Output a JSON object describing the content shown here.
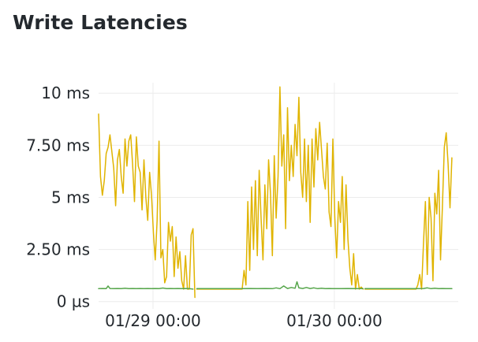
{
  "panel": {
    "title": "Write Latencies"
  },
  "chart_data": {
    "type": "line",
    "title": "Write Latencies",
    "xlabel": "",
    "ylabel": "",
    "x_unit": "hours since 01/28 16:48 (axis shows dates)",
    "xlim": [
      0,
      47.6
    ],
    "ylim": [
      -0.35,
      10.5
    ],
    "grid": true,
    "legend": "none",
    "y_ticks": [
      {
        "value": 10,
        "label": "10 ms"
      },
      {
        "value": 7.5,
        "label": "7.50 ms"
      },
      {
        "value": 5,
        "label": "5 ms"
      },
      {
        "value": 2.5,
        "label": "2.50 ms"
      },
      {
        "value": 0,
        "label": "0 µs"
      }
    ],
    "x_ticks": [
      {
        "value": 7.2,
        "label": "01/29 00:00"
      },
      {
        "value": 31.2,
        "label": "01/30 00:00"
      }
    ],
    "series": [
      {
        "color": "#e0b400",
        "points": [
          [
            0.0,
            9.0
          ],
          [
            0.25,
            6.0
          ],
          [
            0.5,
            5.1
          ],
          [
            0.75,
            5.8
          ],
          [
            1.0,
            7.1
          ],
          [
            1.25,
            7.4
          ],
          [
            1.5,
            8.0
          ],
          [
            1.75,
            7.2
          ],
          [
            2.0,
            6.4
          ],
          [
            2.25,
            4.6
          ],
          [
            2.5,
            6.8
          ],
          [
            2.75,
            7.3
          ],
          [
            3.0,
            6.0
          ],
          [
            3.25,
            5.2
          ],
          [
            3.5,
            7.8
          ],
          [
            3.75,
            6.5
          ],
          [
            4.0,
            7.7
          ],
          [
            4.25,
            8.0
          ],
          [
            4.5,
            6.6
          ],
          [
            4.75,
            4.8
          ],
          [
            5.0,
            7.9
          ],
          [
            5.25,
            6.5
          ],
          [
            5.5,
            6.2
          ],
          [
            5.75,
            4.4
          ],
          [
            6.0,
            6.8
          ],
          [
            6.25,
            5.0
          ],
          [
            6.5,
            3.9
          ],
          [
            6.75,
            6.2
          ],
          [
            7.0,
            5.1
          ],
          [
            7.25,
            3.3
          ],
          [
            7.5,
            2.0
          ],
          [
            7.75,
            3.9
          ],
          [
            8.0,
            7.7
          ],
          [
            8.25,
            2.1
          ],
          [
            8.5,
            2.5
          ],
          [
            8.75,
            0.9
          ],
          [
            9.0,
            1.2
          ],
          [
            9.25,
            3.8
          ],
          [
            9.5,
            2.9
          ],
          [
            9.75,
            3.6
          ],
          [
            10.0,
            1.2
          ],
          [
            10.25,
            3.1
          ],
          [
            10.5,
            1.6
          ],
          [
            10.75,
            2.4
          ],
          [
            11.0,
            1.0
          ],
          [
            11.25,
            0.6
          ],
          [
            11.5,
            2.2
          ],
          [
            11.75,
            0.6
          ],
          [
            12.0,
            0.6
          ],
          [
            12.25,
            3.2
          ],
          [
            12.5,
            3.5
          ],
          [
            12.75,
            0.2
          ],
          null,
          [
            13.0,
            0.6
          ],
          [
            13.5,
            0.6
          ],
          [
            14.0,
            0.6
          ],
          [
            14.5,
            0.6
          ],
          [
            15.0,
            0.6
          ],
          [
            15.5,
            0.6
          ],
          [
            16.0,
            0.6
          ],
          [
            16.5,
            0.6
          ],
          [
            17.0,
            0.6
          ],
          [
            17.5,
            0.6
          ],
          [
            18.0,
            0.6
          ],
          [
            18.5,
            0.6
          ],
          [
            19.0,
            0.6
          ],
          [
            19.25,
            1.5
          ],
          [
            19.5,
            0.8
          ],
          [
            19.75,
            4.8
          ],
          [
            20.0,
            1.5
          ],
          [
            20.25,
            5.5
          ],
          [
            20.5,
            2.5
          ],
          [
            20.75,
            5.8
          ],
          [
            21.0,
            2.2
          ],
          [
            21.25,
            6.3
          ],
          [
            21.5,
            4.0
          ],
          [
            21.75,
            2.0
          ],
          [
            22.0,
            5.6
          ],
          [
            22.25,
            3.5
          ],
          [
            22.5,
            6.8
          ],
          [
            22.75,
            5.2
          ],
          [
            23.0,
            2.2
          ],
          [
            23.25,
            7.0
          ],
          [
            23.5,
            4.0
          ],
          [
            23.75,
            6.0
          ],
          [
            24.0,
            10.3
          ],
          [
            24.25,
            6.5
          ],
          [
            24.5,
            8.0
          ],
          [
            24.75,
            3.5
          ],
          [
            25.0,
            9.3
          ],
          [
            25.25,
            5.8
          ],
          [
            25.5,
            7.5
          ],
          [
            25.75,
            6.0
          ],
          [
            26.0,
            8.5
          ],
          [
            26.25,
            7.0
          ],
          [
            26.5,
            9.8
          ],
          [
            26.75,
            6.2
          ],
          [
            27.0,
            5.0
          ],
          [
            27.25,
            7.8
          ],
          [
            27.5,
            4.8
          ],
          [
            27.75,
            7.5
          ],
          [
            28.0,
            3.8
          ],
          [
            28.25,
            7.8
          ],
          [
            28.5,
            5.5
          ],
          [
            28.75,
            8.3
          ],
          [
            29.0,
            6.8
          ],
          [
            29.25,
            8.6
          ],
          [
            29.5,
            7.3
          ],
          [
            29.75,
            6.0
          ],
          [
            30.0,
            5.4
          ],
          [
            30.25,
            7.6
          ],
          [
            30.5,
            4.3
          ],
          [
            30.75,
            3.6
          ],
          [
            31.0,
            7.8
          ],
          [
            31.25,
            4.1
          ],
          [
            31.5,
            2.1
          ],
          [
            31.75,
            4.8
          ],
          [
            32.0,
            3.8
          ],
          [
            32.25,
            6.0
          ],
          [
            32.5,
            2.5
          ],
          [
            32.75,
            5.6
          ],
          [
            33.0,
            3.0
          ],
          [
            33.25,
            1.6
          ],
          [
            33.5,
            0.8
          ],
          [
            33.75,
            2.3
          ],
          [
            34.0,
            0.6
          ],
          [
            34.25,
            1.3
          ],
          [
            34.5,
            0.6
          ],
          [
            34.75,
            0.7
          ],
          [
            35.0,
            0.6
          ],
          null,
          [
            35.25,
            0.6
          ],
          [
            36.0,
            0.6
          ],
          [
            36.5,
            0.6
          ],
          [
            37.0,
            0.6
          ],
          [
            37.5,
            0.6
          ],
          [
            38.0,
            0.6
          ],
          [
            38.5,
            0.6
          ],
          [
            39.0,
            0.6
          ],
          [
            39.5,
            0.6
          ],
          [
            40.0,
            0.6
          ],
          [
            40.5,
            0.6
          ],
          [
            41.0,
            0.6
          ],
          [
            41.5,
            0.6
          ],
          [
            42.0,
            0.6
          ],
          [
            42.25,
            0.8
          ],
          [
            42.5,
            1.3
          ],
          [
            42.75,
            0.6
          ],
          [
            43.0,
            2.8
          ],
          [
            43.25,
            4.8
          ],
          [
            43.5,
            1.3
          ],
          [
            43.75,
            5.0
          ],
          [
            44.0,
            4.0
          ],
          [
            44.25,
            1.0
          ],
          [
            44.5,
            5.2
          ],
          [
            44.75,
            4.2
          ],
          [
            45.0,
            6.3
          ],
          [
            45.25,
            2.0
          ],
          [
            45.5,
            4.6
          ],
          [
            45.75,
            7.4
          ],
          [
            46.0,
            8.1
          ],
          [
            46.25,
            6.6
          ],
          [
            46.5,
            4.5
          ],
          [
            46.75,
            6.9
          ]
        ]
      },
      {
        "color": "#56a64b",
        "points": [
          [
            0.0,
            0.62
          ],
          [
            0.5,
            0.63
          ],
          [
            1.0,
            0.62
          ],
          [
            1.25,
            0.75
          ],
          [
            1.5,
            0.63
          ],
          [
            2.0,
            0.62
          ],
          [
            2.5,
            0.63
          ],
          [
            3.0,
            0.62
          ],
          [
            3.5,
            0.64
          ],
          [
            4.0,
            0.62
          ],
          [
            4.5,
            0.63
          ],
          [
            5.0,
            0.62
          ],
          [
            5.5,
            0.63
          ],
          [
            6.0,
            0.62
          ],
          [
            6.5,
            0.63
          ],
          [
            7.0,
            0.62
          ],
          [
            7.5,
            0.63
          ],
          [
            8.0,
            0.62
          ],
          [
            8.5,
            0.65
          ],
          [
            9.0,
            0.62
          ],
          [
            9.5,
            0.63
          ],
          [
            10.0,
            0.62
          ],
          [
            10.5,
            0.63
          ],
          [
            11.0,
            0.62
          ],
          [
            11.5,
            0.63
          ],
          [
            12.0,
            0.62
          ],
          [
            12.5,
            0.6
          ],
          null,
          [
            13.0,
            0.62
          ],
          [
            14.0,
            0.62
          ],
          [
            15.0,
            0.62
          ],
          [
            16.0,
            0.62
          ],
          [
            17.0,
            0.62
          ],
          [
            18.0,
            0.62
          ],
          [
            19.0,
            0.62
          ],
          [
            20.0,
            0.63
          ],
          [
            21.0,
            0.62
          ],
          [
            22.0,
            0.63
          ],
          [
            23.0,
            0.62
          ],
          [
            23.5,
            0.66
          ],
          [
            24.0,
            0.62
          ],
          [
            24.5,
            0.75
          ],
          [
            25.0,
            0.63
          ],
          [
            25.5,
            0.68
          ],
          [
            26.0,
            0.64
          ],
          [
            26.25,
            0.95
          ],
          [
            26.5,
            0.66
          ],
          [
            27.0,
            0.63
          ],
          [
            27.5,
            0.68
          ],
          [
            28.0,
            0.63
          ],
          [
            28.5,
            0.66
          ],
          [
            29.0,
            0.62
          ],
          [
            29.5,
            0.64
          ],
          [
            30.0,
            0.62
          ],
          [
            30.5,
            0.63
          ],
          [
            31.0,
            0.62
          ],
          [
            32.0,
            0.62
          ],
          [
            33.0,
            0.63
          ],
          [
            34.0,
            0.62
          ],
          [
            35.0,
            0.62
          ],
          null,
          [
            35.25,
            0.62
          ],
          [
            36.0,
            0.62
          ],
          [
            37.0,
            0.62
          ],
          [
            38.0,
            0.62
          ],
          [
            39.0,
            0.62
          ],
          [
            40.0,
            0.62
          ],
          [
            41.0,
            0.62
          ],
          [
            42.0,
            0.62
          ],
          [
            43.0,
            0.63
          ],
          [
            43.5,
            0.66
          ],
          [
            44.0,
            0.62
          ],
          [
            44.5,
            0.64
          ],
          [
            45.0,
            0.62
          ],
          [
            45.5,
            0.63
          ],
          [
            46.0,
            0.62
          ],
          [
            46.75,
            0.62
          ]
        ]
      }
    ]
  }
}
